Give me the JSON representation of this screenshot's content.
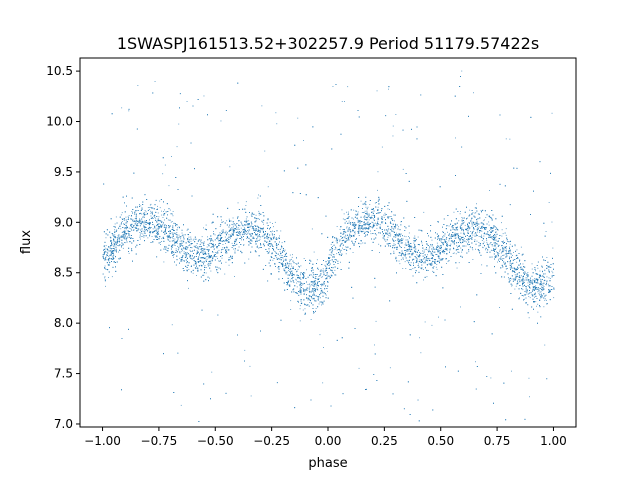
{
  "chart_data": {
    "type": "scatter",
    "title": "1SWASPJ161513.52+302257.9 Period 51179.57422s",
    "xlabel": "phase",
    "ylabel": "flux",
    "xlim": [
      -1.1,
      1.1
    ],
    "ylim": [
      6.97,
      10.63
    ],
    "xticks": [
      -1.0,
      -0.75,
      -0.5,
      -0.25,
      0.0,
      0.25,
      0.5,
      0.75,
      1.0
    ],
    "xtick_labels": [
      "−1.00",
      "−0.75",
      "−0.50",
      "−0.25",
      "0.00",
      "0.25",
      "0.50",
      "0.75",
      "1.00"
    ],
    "yticks": [
      7.0,
      7.5,
      8.0,
      8.5,
      9.0,
      9.5,
      10.0,
      10.5
    ],
    "ytick_labels": [
      "7.0",
      "7.5",
      "8.0",
      "8.5",
      "9.0",
      "9.5",
      "10.0",
      "10.5"
    ],
    "grid": false,
    "legend": false,
    "point_color": "#1f77b4",
    "phase_range": [
      -1.0,
      1.0
    ],
    "light_curve": {
      "phase": [
        0.0,
        0.05,
        0.1,
        0.15,
        0.2,
        0.25,
        0.3,
        0.35,
        0.4,
        0.45,
        0.5,
        0.55,
        0.6,
        0.65,
        0.7,
        0.75,
        0.8,
        0.85,
        0.9,
        0.95,
        1.0
      ],
      "flux": [
        8.58,
        8.78,
        8.92,
        9.0,
        9.02,
        8.97,
        8.88,
        8.76,
        8.68,
        8.66,
        8.74,
        8.84,
        8.9,
        8.93,
        8.9,
        8.8,
        8.62,
        8.45,
        8.35,
        8.36,
        8.45
      ]
    }
  }
}
